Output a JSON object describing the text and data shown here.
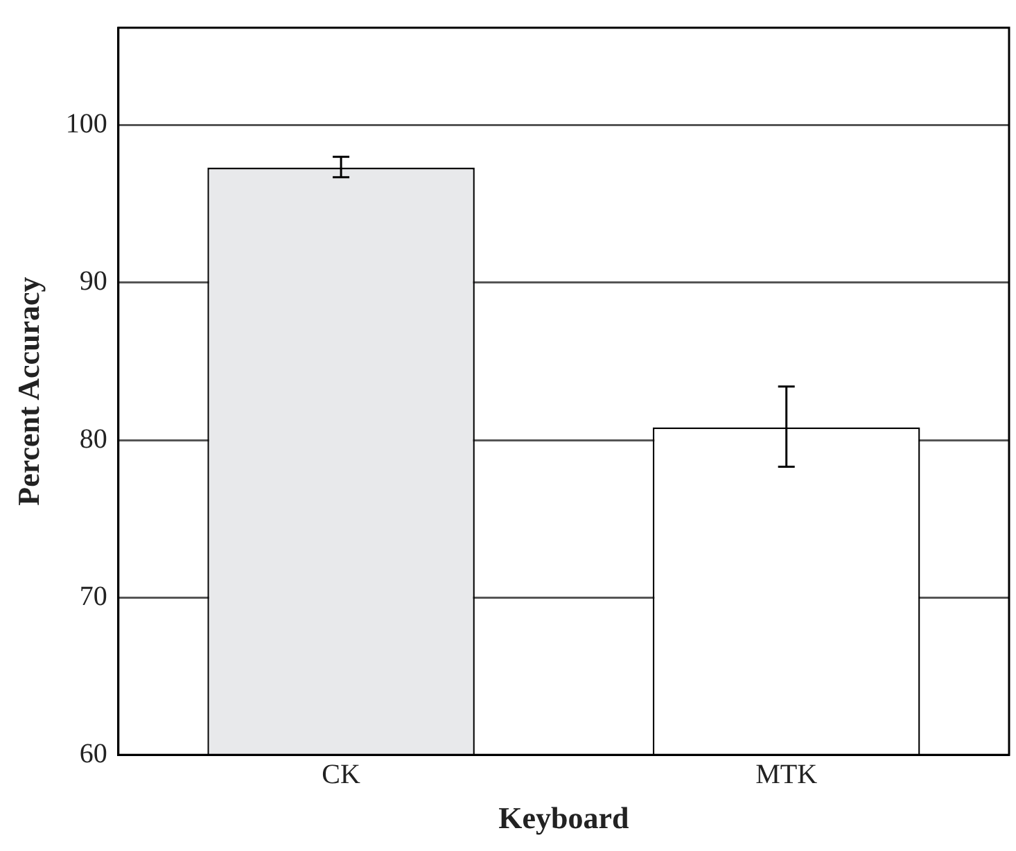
{
  "chart_data": {
    "type": "bar",
    "xlabel": "Keyboard",
    "ylabel": "Percent Accuracy",
    "categories": [
      "CK",
      "MTK"
    ],
    "values": [
      97.3,
      80.8
    ],
    "colors": [
      "#e8e9eb",
      "#ffffff"
    ],
    "errors": [
      [
        96.7,
        98
      ],
      [
        78.3,
        83.4
      ]
    ],
    "ylim": [
      60,
      106.2
    ],
    "yticks": [
      60,
      70,
      80,
      90,
      100
    ],
    "grid": "y",
    "legend": false
  }
}
